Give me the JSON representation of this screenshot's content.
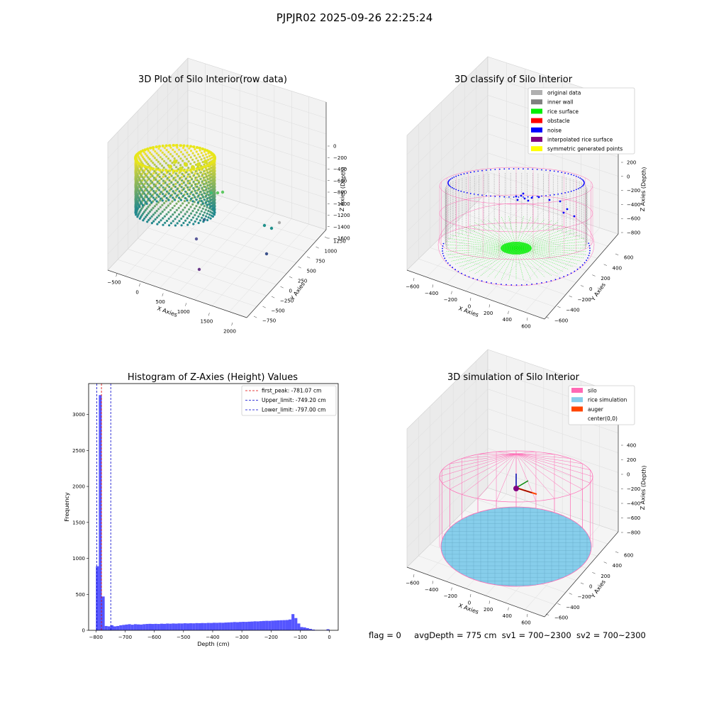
{
  "suptitle": "PJPJR02 2025-09-26 22:25:24",
  "status_line": {
    "flag": "flag = 0",
    "avg": "avgDepth = 775 cm",
    "sv1": "sv1 = 700~2300",
    "sv2": "sv2 = 700~2300"
  },
  "colors": {
    "original": "#b0b0b0",
    "inner_wall": "#808080",
    "rice_surface": "#00ee00",
    "obstacle": "#ff0000",
    "noise": "#0000ff",
    "interpolated": "#800080",
    "symmetric": "#ffff00",
    "silo": "#ff69b4",
    "rice_sim": "#87ceeb",
    "auger": "#ff4500",
    "hist_bar": "#5555ff",
    "peak_line": "#dd0000",
    "limit_line": "#0000cc"
  },
  "chart_data": [
    {
      "type": "scatter",
      "title": "3D Plot of Silo Interior(row data)",
      "xlabel": "X Axies",
      "ylabel": "Y Axies",
      "zlabel": "Z Axies (Depth)",
      "x_ticks": [
        "−500",
        "0",
        "500",
        "1000",
        "1500",
        "2000"
      ],
      "y_ticks": [
        "−750",
        "−500",
        "−250",
        "0",
        "250",
        "500",
        "750",
        "1000",
        "1250"
      ],
      "z_ticks": [
        "0",
        "−200",
        "−400",
        "−600",
        "−800",
        "−1000",
        "−1200",
        "−1400",
        "−1600"
      ]
    },
    {
      "type": "scatter",
      "title": "3D classify of Silo Interior",
      "xlabel": "X Axies",
      "ylabel": "Y Axies",
      "zlabel": "Z Axies (Depth)",
      "x_ticks": [
        "−600",
        "−400",
        "−200",
        "0",
        "200",
        "400",
        "600"
      ],
      "y_ticks": [
        "−600",
        "−400",
        "−200",
        "0",
        "200",
        "400",
        "600"
      ],
      "z_ticks": [
        "200",
        "0",
        "−200",
        "−400",
        "−600",
        "−800"
      ],
      "legend": [
        "original data",
        "inner wall",
        "rice surface",
        "obstacle",
        "noise",
        "interpolated rice surface",
        "symmetric generated points"
      ],
      "legend_loc": "upper-right"
    },
    {
      "type": "bar",
      "title": "Histogram of Z-Axies (Height) Values",
      "xlabel": "Depth (cm)",
      "ylabel": "Frequency",
      "x_ticks": [
        "−800",
        "−700",
        "−600",
        "−500",
        "−400",
        "−300",
        "−200",
        "−100",
        "0"
      ],
      "y_ticks": [
        "0",
        "500",
        "1000",
        "1500",
        "2000",
        "2500",
        "3000"
      ],
      "xlim": [
        -825,
        30
      ],
      "ylim": [
        0,
        3430
      ],
      "bins": [
        {
          "x": -800,
          "v": 890
        },
        {
          "x": -790,
          "v": 3270
        },
        {
          "x": -780,
          "v": 470
        },
        {
          "x": -770,
          "v": 60
        },
        {
          "x": -760,
          "v": 55
        },
        {
          "x": -750,
          "v": 70
        },
        {
          "x": -740,
          "v": 55
        },
        {
          "x": -730,
          "v": 60
        },
        {
          "x": -720,
          "v": 70
        },
        {
          "x": -710,
          "v": 75
        },
        {
          "x": -700,
          "v": 80
        },
        {
          "x": -690,
          "v": 85
        },
        {
          "x": -680,
          "v": 78
        },
        {
          "x": -670,
          "v": 85
        },
        {
          "x": -660,
          "v": 82
        },
        {
          "x": -650,
          "v": 80
        },
        {
          "x": -640,
          "v": 85
        },
        {
          "x": -630,
          "v": 88
        },
        {
          "x": -620,
          "v": 90
        },
        {
          "x": -610,
          "v": 88
        },
        {
          "x": -600,
          "v": 90
        },
        {
          "x": -590,
          "v": 88
        },
        {
          "x": -580,
          "v": 92
        },
        {
          "x": -570,
          "v": 90
        },
        {
          "x": -560,
          "v": 94
        },
        {
          "x": -550,
          "v": 92
        },
        {
          "x": -540,
          "v": 95
        },
        {
          "x": -530,
          "v": 93
        },
        {
          "x": -520,
          "v": 96
        },
        {
          "x": -510,
          "v": 95
        },
        {
          "x": -500,
          "v": 98
        },
        {
          "x": -490,
          "v": 96
        },
        {
          "x": -480,
          "v": 98
        },
        {
          "x": -470,
          "v": 97
        },
        {
          "x": -460,
          "v": 100
        },
        {
          "x": -450,
          "v": 99
        },
        {
          "x": -440,
          "v": 101
        },
        {
          "x": -430,
          "v": 100
        },
        {
          "x": -420,
          "v": 103
        },
        {
          "x": -410,
          "v": 102
        },
        {
          "x": -400,
          "v": 105
        },
        {
          "x": -390,
          "v": 104
        },
        {
          "x": -380,
          "v": 106
        },
        {
          "x": -370,
          "v": 105
        },
        {
          "x": -360,
          "v": 108
        },
        {
          "x": -350,
          "v": 110
        },
        {
          "x": -340,
          "v": 112
        },
        {
          "x": -330,
          "v": 115
        },
        {
          "x": -320,
          "v": 113
        },
        {
          "x": -310,
          "v": 116
        },
        {
          "x": -300,
          "v": 118
        },
        {
          "x": -290,
          "v": 117
        },
        {
          "x": -280,
          "v": 120
        },
        {
          "x": -270,
          "v": 122
        },
        {
          "x": -260,
          "v": 125
        },
        {
          "x": -250,
          "v": 124
        },
        {
          "x": -240,
          "v": 127
        },
        {
          "x": -230,
          "v": 130
        },
        {
          "x": -220,
          "v": 132
        },
        {
          "x": -210,
          "v": 131
        },
        {
          "x": -200,
          "v": 134
        },
        {
          "x": -190,
          "v": 136
        },
        {
          "x": -180,
          "v": 138
        },
        {
          "x": -170,
          "v": 140
        },
        {
          "x": -160,
          "v": 141
        },
        {
          "x": -150,
          "v": 143
        },
        {
          "x": -140,
          "v": 150
        },
        {
          "x": -130,
          "v": 225
        },
        {
          "x": -120,
          "v": 170
        },
        {
          "x": -110,
          "v": 95
        },
        {
          "x": -100,
          "v": 45
        },
        {
          "x": -90,
          "v": 40
        },
        {
          "x": -80,
          "v": 30
        },
        {
          "x": -70,
          "v": 20
        },
        {
          "x": -60,
          "v": 10
        },
        {
          "x": -50,
          "v": 5
        },
        {
          "x": -40,
          "v": 4
        },
        {
          "x": -30,
          "v": 3
        },
        {
          "x": -20,
          "v": 2
        },
        {
          "x": -10,
          "v": 15
        }
      ],
      "bin_width": 10,
      "vlines": [
        {
          "label": "first_peak: -781.07 cm",
          "x": -781.07,
          "color": "#dd0000"
        },
        {
          "label": "Upper_limit: -749.20 cm",
          "x": -749.2,
          "color": "#0000cc"
        },
        {
          "label": "Lower_limit: -797.00 cm",
          "x": -797.0,
          "color": "#0000cc"
        }
      ],
      "legend_loc": "upper-right"
    },
    {
      "type": "scatter",
      "title": "3D simulation of Silo Interior",
      "xlabel": "X Axies",
      "ylabel": "Y Axies",
      "zlabel": "Z Axies (Depth)",
      "x_ticks": [
        "−600",
        "−400",
        "−200",
        "0",
        "200",
        "400",
        "600"
      ],
      "y_ticks": [
        "−600",
        "−400",
        "−200",
        "0",
        "200",
        "400",
        "600"
      ],
      "z_ticks": [
        "400",
        "200",
        "0",
        "−200",
        "−400",
        "−600",
        "−800"
      ],
      "legend": [
        "silo",
        "rice simulation",
        "auger",
        "center(0,0)"
      ],
      "legend_loc": "upper-right"
    }
  ]
}
